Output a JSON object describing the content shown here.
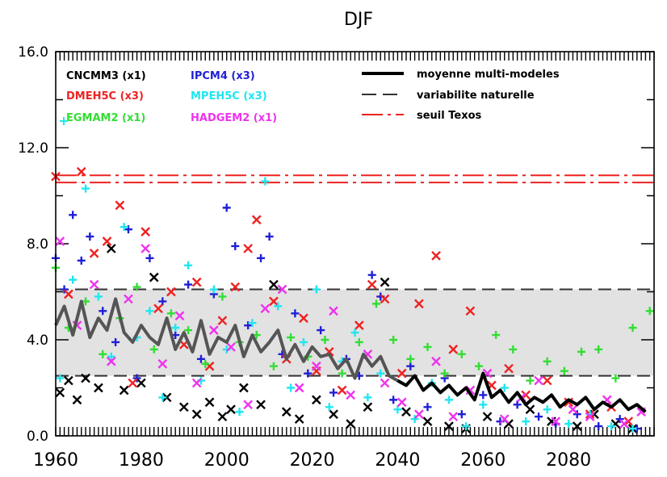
{
  "chart_data": {
    "type": "scatter",
    "title": "DJF",
    "xlabel": "",
    "ylabel": "",
    "xlim": [
      1960,
      2100
    ],
    "ylim": [
      0,
      16
    ],
    "x_ticks": [
      1960,
      1980,
      2000,
      2020,
      2040,
      2060,
      2080
    ],
    "x_tick_labels": [
      "1960",
      "1980",
      "2000",
      "2020",
      "2040",
      "2060",
      "2080"
    ],
    "y_ticks": [
      0,
      4,
      8,
      12,
      16
    ],
    "y_tick_labels": [
      "0.0",
      "4.0",
      "8.0",
      "12.0",
      "16.0"
    ],
    "grid": false,
    "legend_models": [
      {
        "label": "CNCMM3 (x1)",
        "color": "#000000",
        "marker": "x"
      },
      {
        "label": "IPCM4 (x3)",
        "color": "#1f1fd6",
        "marker": "+"
      },
      {
        "label": "DMEH5C (x3)",
        "color": "#ee2222",
        "marker": "x"
      },
      {
        "label": "MPEH5C (x3)",
        "color": "#20e6f0",
        "marker": "+"
      },
      {
        "label": "EGMAM2 (x1)",
        "color": "#33dd33",
        "marker": "+"
      },
      {
        "label": "HADGEM2 (x1)",
        "color": "#ee33ee",
        "marker": "x"
      }
    ],
    "legend_lines": [
      {
        "label": "moyenne multi-modeles",
        "style": "solid",
        "color": "#000000"
      },
      {
        "label": "variabilite naturelle",
        "style": "dashed",
        "color": "#333333"
      },
      {
        "label": "seuil Texos",
        "style": "dashdot",
        "color": "#ee2222"
      }
    ],
    "natural_variability_band": {
      "low": 2.5,
      "high": 6.1,
      "fill": "#e2e2e2"
    },
    "threshold_lines": [
      10.55,
      10.85
    ],
    "series": [
      {
        "name": "moyenne multi-modeles",
        "x": [
          1960,
          1962,
          1964,
          1966,
          1968,
          1970,
          1972,
          1974,
          1976,
          1978,
          1980,
          1982,
          1984,
          1986,
          1988,
          1990,
          1992,
          1994,
          1996,
          1998,
          2000,
          2002,
          2004,
          2006,
          2008,
          2010,
          2012,
          2014,
          2016,
          2018,
          2020,
          2022,
          2024,
          2026,
          2028,
          2030,
          2032,
          2034,
          2036,
          2038,
          2040,
          2042,
          2044,
          2046,
          2048,
          2050,
          2052,
          2054,
          2056,
          2058,
          2060,
          2062,
          2064,
          2066,
          2068,
          2070,
          2072,
          2074,
          2076,
          2078,
          2080,
          2082,
          2084,
          2086,
          2088,
          2090,
          2092,
          2094,
          2096,
          2098
        ],
        "y": [
          4.6,
          5.4,
          4.2,
          5.6,
          4.1,
          4.9,
          4.4,
          5.7,
          4.3,
          3.9,
          4.6,
          4.1,
          3.8,
          4.9,
          3.6,
          4.3,
          3.5,
          4.8,
          3.4,
          4.1,
          3.9,
          4.6,
          3.3,
          4.2,
          3.5,
          3.9,
          4.4,
          3.2,
          3.8,
          3.1,
          3.7,
          3.3,
          3.4,
          2.8,
          3.2,
          2.4,
          3.4,
          2.9,
          3.3,
          2.5,
          2.3,
          2.1,
          2.5,
          1.9,
          2.2,
          1.8,
          2.1,
          1.7,
          2.0,
          1.5,
          2.6,
          1.6,
          1.9,
          1.4,
          1.8,
          1.3,
          1.6,
          1.4,
          1.7,
          1.2,
          1.5,
          1.3,
          1.6,
          1.1,
          1.4,
          1.2,
          1.5,
          1.1,
          1.3,
          1.0
        ]
      },
      {
        "name": "CNCMM3 (x1)",
        "x": [
          1961,
          1963,
          1965,
          1967,
          1970,
          1973,
          1976,
          1980,
          1983,
          1986,
          1990,
          1993,
          1996,
          1999,
          2001,
          2004,
          2008,
          2011,
          2014,
          2017,
          2021,
          2025,
          2029,
          2033,
          2037,
          2042,
          2047,
          2052,
          2056,
          2061,
          2066,
          2071,
          2076,
          2082,
          2086,
          2091,
          2095
        ],
        "y": [
          1.8,
          2.3,
          1.5,
          2.4,
          2.0,
          7.8,
          1.9,
          2.2,
          6.6,
          1.6,
          1.2,
          0.9,
          1.4,
          0.8,
          1.1,
          2.0,
          1.3,
          6.3,
          1.0,
          0.7,
          1.5,
          0.9,
          0.5,
          1.2,
          6.4,
          1.0,
          0.6,
          0.4,
          0.3,
          0.8,
          0.5,
          1.1,
          0.6,
          0.4,
          0.9,
          0.5,
          0.3
        ]
      },
      {
        "name": "IPCM4 (x3)",
        "x": [
          1960,
          1962,
          1964,
          1966,
          1968,
          1971,
          1974,
          1977,
          1979,
          1982,
          1985,
          1988,
          1991,
          1994,
          1997,
          2000,
          2002,
          2005,
          2008,
          2010,
          2013,
          2016,
          2019,
          2022,
          2025,
          2028,
          2031,
          2034,
          2036,
          2039,
          2043,
          2047,
          2051,
          2055,
          2060,
          2064,
          2068,
          2073,
          2077,
          2082,
          2087,
          2092,
          2096
        ],
        "y": [
          7.4,
          6.1,
          9.2,
          7.3,
          8.3,
          5.2,
          3.9,
          8.6,
          2.4,
          7.4,
          5.6,
          4.2,
          6.3,
          3.2,
          5.9,
          9.5,
          7.9,
          4.6,
          7.4,
          8.3,
          3.4,
          5.1,
          2.6,
          4.4,
          1.8,
          3.2,
          2.5,
          6.7,
          5.8,
          1.5,
          2.9,
          1.2,
          2.4,
          0.9,
          1.7,
          0.6,
          1.3,
          0.8,
          0.5,
          0.9,
          0.4,
          0.7,
          0.3
        ]
      },
      {
        "name": "DMEH5C (x3)",
        "x": [
          1960,
          1963,
          1966,
          1969,
          1972,
          1975,
          1978,
          1981,
          1984,
          1987,
          1990,
          1993,
          1996,
          1999,
          2002,
          2005,
          2007,
          2011,
          2014,
          2018,
          2021,
          2024,
          2027,
          2031,
          2034,
          2037,
          2041,
          2045,
          2049,
          2053,
          2057,
          2062,
          2066,
          2070,
          2075,
          2080,
          2085,
          2090,
          2094
        ],
        "y": [
          10.8,
          5.9,
          11.0,
          7.6,
          8.1,
          9.6,
          2.2,
          8.5,
          5.3,
          6.0,
          3.8,
          6.4,
          2.9,
          4.8,
          6.2,
          7.8,
          9.0,
          5.6,
          3.2,
          4.9,
          2.7,
          3.5,
          1.9,
          4.6,
          6.3,
          5.7,
          2.6,
          5.5,
          7.5,
          3.6,
          5.2,
          2.1,
          2.8,
          1.7,
          2.3,
          1.4,
          0.9,
          1.2,
          0.6
        ]
      },
      {
        "name": "MPEH5C (x3)",
        "x": [
          1961,
          1964,
          1967,
          1970,
          1973,
          1976,
          1979,
          1982,
          1985,
          1988,
          1991,
          1994,
          1997,
          2000,
          2003,
          2006,
          2009,
          2012,
          2015,
          2018,
          2021,
          2024,
          2027,
          2030,
          2033,
          2036,
          2040,
          2044,
          2048,
          2052,
          2056,
          2060,
          2065,
          2070,
          2075,
          2080,
          2085,
          2090,
          2095
        ],
        "y": [
          2.4,
          6.5,
          10.3,
          5.8,
          3.3,
          8.7,
          4.1,
          5.2,
          1.6,
          4.5,
          7.1,
          2.3,
          6.1,
          3.6,
          1.0,
          4.7,
          10.6,
          5.4,
          2.0,
          3.9,
          6.1,
          1.2,
          3.1,
          4.3,
          1.6,
          2.6,
          1.1,
          0.7,
          2.2,
          1.5,
          0.4,
          1.3,
          2.0,
          0.6,
          1.1,
          0.5,
          0.9,
          0.4,
          0.3
        ]
      },
      {
        "name": "EGMAM2 (x1)",
        "x": [
          1960,
          1963,
          1967,
          1971,
          1975,
          1979,
          1983,
          1987,
          1991,
          1995,
          1999,
          2003,
          2007,
          2011,
          2015,
          2019,
          2023,
          2027,
          2031,
          2035,
          2039,
          2043,
          2047,
          2051,
          2055,
          2059,
          2063,
          2067,
          2071,
          2075,
          2079,
          2083,
          2087,
          2091,
          2095,
          2099
        ],
        "y": [
          7.0,
          4.5,
          5.6,
          3.4,
          4.9,
          6.2,
          3.6,
          5.1,
          4.4,
          3.0,
          5.8,
          3.9,
          4.2,
          2.9,
          4.1,
          3.3,
          4.0,
          2.6,
          3.9,
          5.5,
          4.0,
          3.2,
          3.7,
          2.6,
          3.4,
          2.9,
          4.2,
          3.6,
          2.3,
          3.1,
          2.7,
          3.5,
          3.6,
          2.4,
          4.5,
          5.2
        ]
      },
      {
        "name": "HADGEM2 (x1)",
        "x": [
          1961,
          1965,
          1969,
          1973,
          1977,
          1981,
          1985,
          1989,
          1993,
          1997,
          2001,
          2005,
          2009,
          2013,
          2017,
          2021,
          2025,
          2029,
          2033,
          2037,
          2041,
          2045,
          2049,
          2053,
          2057,
          2061,
          2065,
          2069,
          2073,
          2077,
          2081,
          2085,
          2089,
          2093,
          2097
        ],
        "y": [
          8.1,
          4.6,
          6.3,
          3.1,
          5.7,
          7.8,
          3.0,
          5.0,
          2.2,
          4.4,
          3.7,
          1.3,
          5.3,
          6.1,
          2.0,
          2.9,
          5.2,
          1.7,
          3.4,
          2.2,
          1.4,
          0.9,
          3.1,
          0.8,
          1.9,
          2.6,
          0.7,
          1.6,
          2.3,
          0.6,
          1.1,
          0.8,
          1.5,
          0.5,
          1.0
        ]
      }
    ]
  }
}
